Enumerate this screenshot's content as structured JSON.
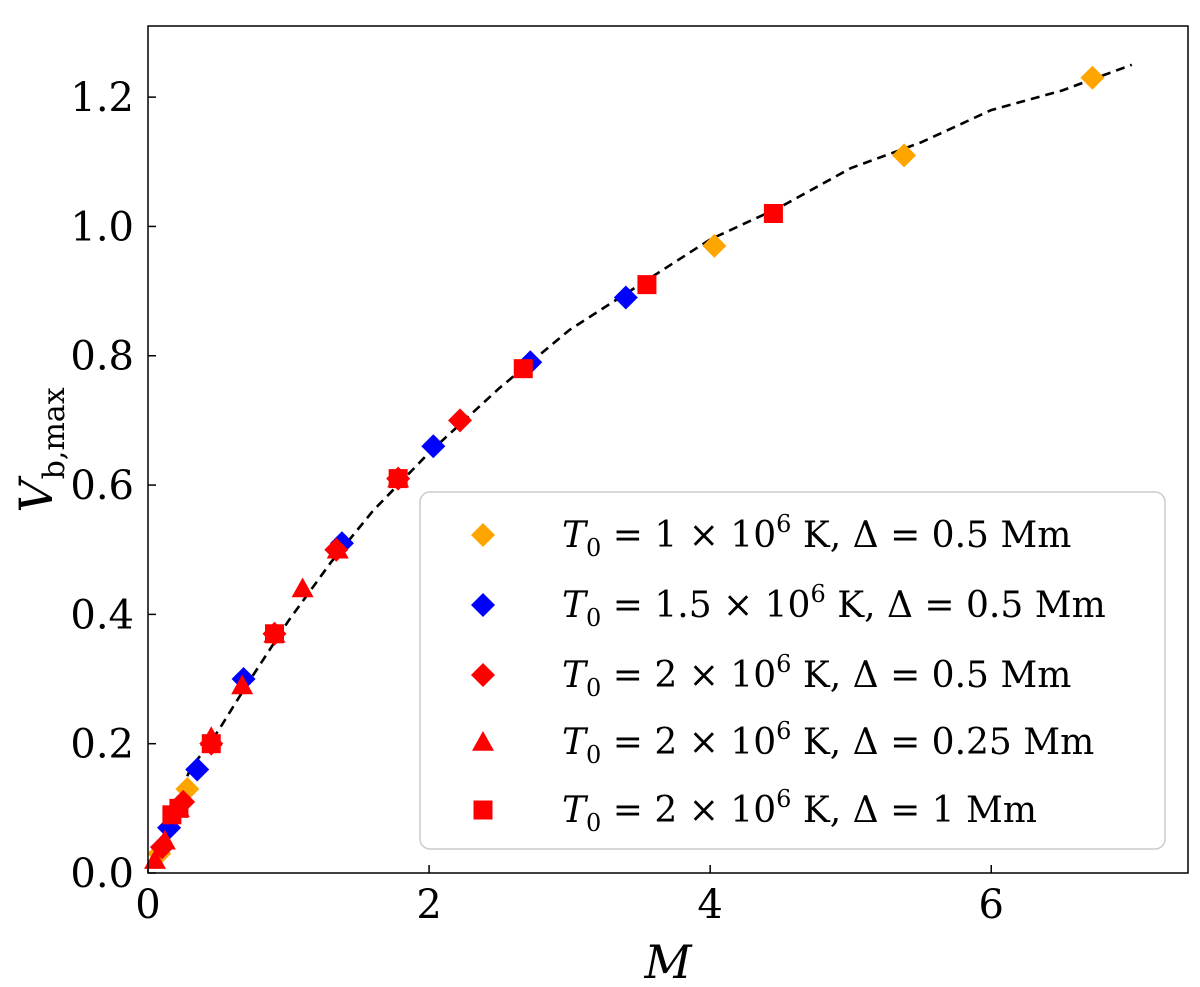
{
  "chart_data": {
    "type": "scatter",
    "title": "",
    "xlabel": "M",
    "ylabel_main": "V",
    "ylabel_sub": "b,max",
    "xlim": [
      0,
      7.4
    ],
    "ylim": [
      0,
      1.31
    ],
    "xticks": [
      0,
      2,
      4,
      6
    ],
    "xtick_labels": [
      "0",
      "2",
      "4",
      "6"
    ],
    "yticks": [
      0.0,
      0.2,
      0.4,
      0.6,
      0.8,
      1.0,
      1.2
    ],
    "ytick_labels": [
      "0.0",
      "0.2",
      "0.4",
      "0.6",
      "0.8",
      "1.0",
      "1.2"
    ],
    "grid": false,
    "legend_position": "lower-right",
    "fit_curve": {
      "style": "dashed",
      "color": "#000000",
      "x": [
        0.05,
        0.1,
        0.2,
        0.3,
        0.5,
        0.7,
        1.0,
        1.3,
        1.6,
        2.0,
        2.5,
        3.0,
        3.5,
        4.0,
        4.5,
        5.0,
        5.5,
        6.0,
        6.5,
        7.0
      ],
      "y": [
        0.02,
        0.06,
        0.11,
        0.16,
        0.22,
        0.29,
        0.39,
        0.48,
        0.56,
        0.65,
        0.75,
        0.84,
        0.91,
        0.98,
        1.03,
        1.09,
        1.13,
        1.18,
        1.21,
        1.25
      ]
    },
    "series": [
      {
        "name": "T_0 = 1 × 10^6 K, Δ = 0.5 Mm",
        "legend": {
          "lhs": "T",
          "sub": "0",
          "mid": " = 1 × 10",
          "sup": "6",
          "rhs": " K,  Δ = 0.5 Mm"
        },
        "marker": "diamond",
        "color": "#FFA500",
        "x": [
          0.08,
          0.15,
          0.28,
          4.03,
          5.38,
          6.72
        ],
        "y": [
          0.03,
          0.07,
          0.13,
          0.97,
          1.11,
          1.23
        ]
      },
      {
        "name": "T_0 = 1.5 × 10^6 K, Δ = 0.5 Mm",
        "legend": {
          "lhs": "T",
          "sub": "0",
          "mid": " = 1.5 × 10",
          "sup": "6",
          "rhs": " K,  Δ = 0.5 Mm"
        },
        "marker": "diamond",
        "color": "#0000FF",
        "x": [
          0.1,
          0.15,
          0.35,
          0.68,
          1.38,
          2.03,
          2.72,
          3.4
        ],
        "y": [
          0.04,
          0.07,
          0.16,
          0.3,
          0.51,
          0.66,
          0.79,
          0.89
        ]
      },
      {
        "name": "T_0 = 2 × 10^6 K, Δ = 0.5 Mm",
        "legend": {
          "lhs": "T",
          "sub": "0",
          "mid": " = 2 × 10",
          "sup": "6",
          "rhs": " K,  Δ = 0.5 Mm"
        },
        "marker": "diamond",
        "color": "#FF0000",
        "x": [
          0.1,
          0.25,
          0.45,
          0.9,
          1.34,
          1.78,
          2.22
        ],
        "y": [
          0.04,
          0.11,
          0.2,
          0.37,
          0.5,
          0.61,
          0.7
        ]
      },
      {
        "name": "T_0 = 2 × 10^6 K, Δ = 0.25 Mm",
        "legend": {
          "lhs": "T",
          "sub": "0",
          "mid": " = 2 × 10",
          "sup": "6",
          "rhs": " K,  Δ = 0.25 Mm"
        },
        "marker": "triangle",
        "color": "#FF0000",
        "x": [
          0.05,
          0.12,
          0.22,
          0.45,
          0.67,
          0.9,
          1.1,
          1.35,
          1.78
        ],
        "y": [
          0.02,
          0.05,
          0.1,
          0.21,
          0.29,
          0.37,
          0.44,
          0.5,
          0.61
        ]
      },
      {
        "name": "T_0 = 2 × 10^6 K, Δ = 1 Mm",
        "legend": {
          "lhs": "T",
          "sub": "0",
          "mid": " = 2 × 10",
          "sup": "6",
          "rhs": " K,  Δ = 1 Mm"
        },
        "marker": "square",
        "color": "#FF0000",
        "x": [
          0.17,
          0.22,
          0.45,
          0.9,
          1.78,
          2.67,
          3.55,
          4.45
        ],
        "y": [
          0.09,
          0.1,
          0.2,
          0.37,
          0.61,
          0.78,
          0.91,
          1.02
        ]
      }
    ]
  }
}
